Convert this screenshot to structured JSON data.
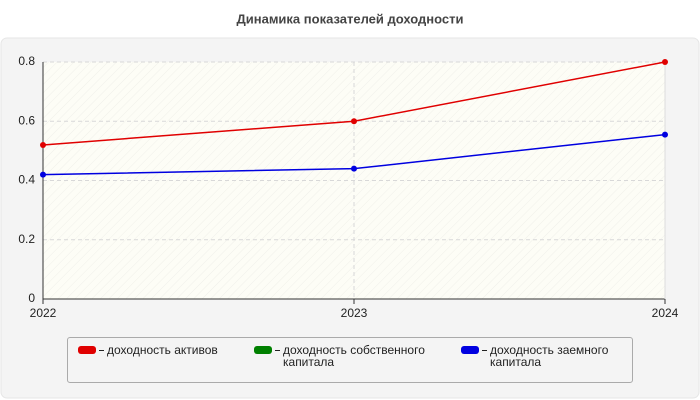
{
  "chart_data": {
    "type": "line",
    "title": "Динамика показателей доходности",
    "categories": [
      "2022",
      "2023",
      "2024"
    ],
    "series": [
      {
        "name": "доходность активов",
        "color": "#e00000",
        "values": [
          0.52,
          0.6,
          0.8
        ]
      },
      {
        "name": "доходность собственного капитала",
        "color": "#008000",
        "values": [
          null,
          null,
          null
        ]
      },
      {
        "name": "доходность заемного капитала",
        "color": "#0000e0",
        "values": [
          0.42,
          0.44,
          0.555
        ]
      }
    ],
    "ylim": [
      0,
      0.8
    ],
    "yticks": [
      0,
      0.2,
      0.4,
      0.6,
      0.8
    ],
    "grid": true
  }
}
